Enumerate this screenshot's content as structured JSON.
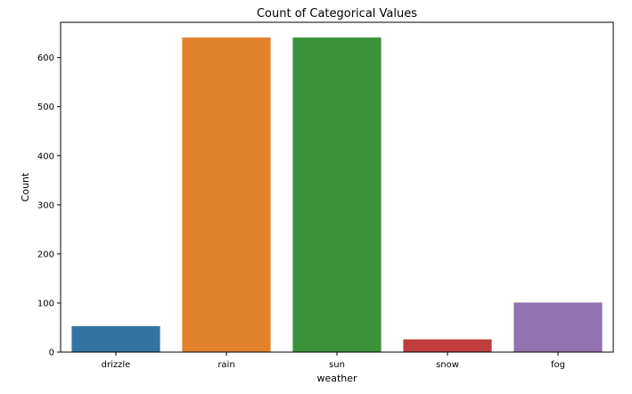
{
  "chart_data": {
    "type": "bar",
    "title": "Count of Categorical Values",
    "xlabel": "weather",
    "ylabel": "Count",
    "categories": [
      "drizzle",
      "rain",
      "sun",
      "snow",
      "fog"
    ],
    "values": [
      53,
      641,
      641,
      26,
      101
    ],
    "colors": [
      "#3274a1",
      "#e1812c",
      "#3a923a",
      "#c03d3e",
      "#9372b2"
    ],
    "ylim": [
      0,
      672
    ],
    "yticks": [
      0,
      100,
      200,
      300,
      400,
      500,
      600
    ],
    "grid": false,
    "legend": "none"
  }
}
